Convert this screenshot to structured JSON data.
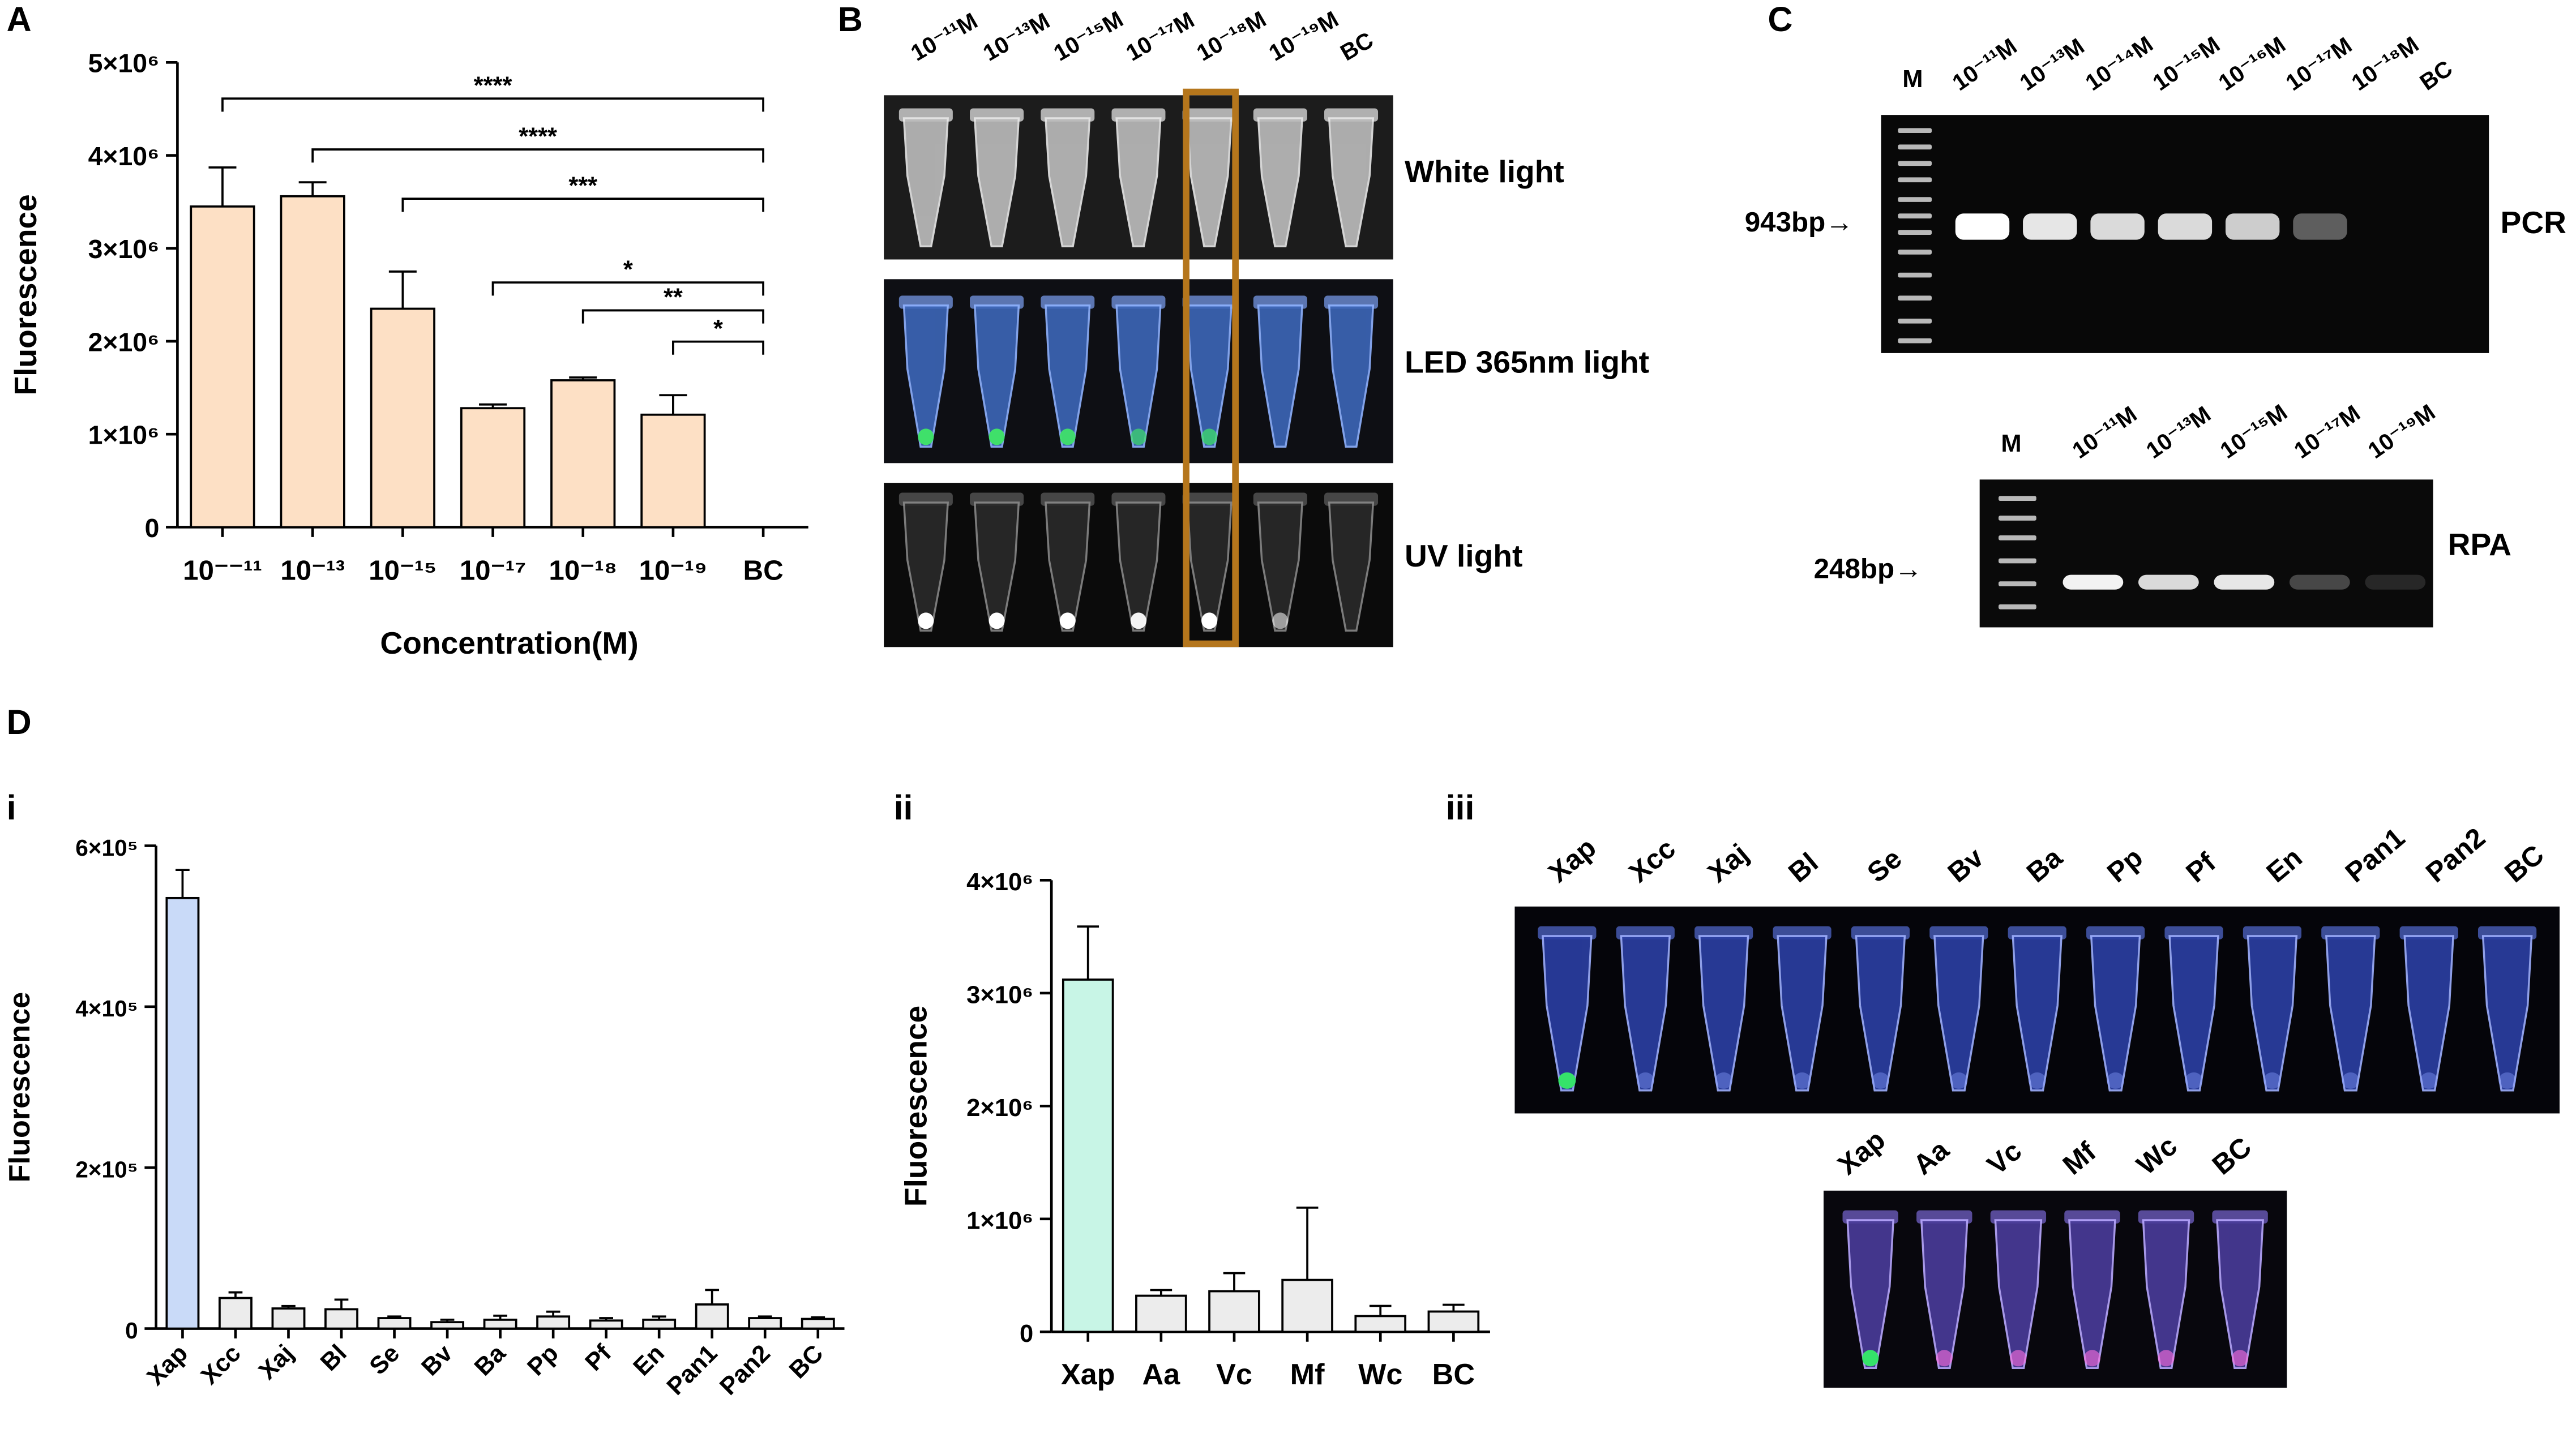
{
  "panels": {
    "A": "A",
    "B": "B",
    "C": "C",
    "D": "D",
    "i": "i",
    "ii": "ii",
    "iii": "iii"
  },
  "chart_data": [
    {
      "id": "A",
      "type": "bar",
      "xlabel": "Concentration(M)",
      "ylabel": "Fluorescence",
      "ylim": [
        0,
        5000000
      ],
      "yticks": [
        "0",
        "1×10⁶",
        "2×10⁶",
        "3×10⁶",
        "4×10⁶",
        "5×10⁶"
      ],
      "categories": [
        "10⁻⁻¹¹",
        "10⁻¹³",
        "10⁻¹⁵",
        "10⁻¹⁷",
        "10⁻¹⁸",
        "10⁻¹⁹",
        "BC"
      ],
      "values": [
        3450000,
        3560000,
        2350000,
        1280000,
        1580000,
        1210000,
        0
      ],
      "errors": [
        420000,
        150000,
        400000,
        40000,
        30000,
        210000,
        0
      ],
      "bar_color": "#fde0c5",
      "significance": [
        {
          "from": 0,
          "to": 6,
          "label": "****"
        },
        {
          "from": 1,
          "to": 6,
          "label": "****"
        },
        {
          "from": 2,
          "to": 6,
          "label": "***"
        },
        {
          "from": 3,
          "to": 6,
          "label": "*"
        },
        {
          "from": 4,
          "to": 6,
          "label": "**"
        },
        {
          "from": 5,
          "to": 6,
          "label": "*"
        }
      ],
      "grid": false
    },
    {
      "id": "D-i",
      "type": "bar",
      "xlabel": "",
      "ylabel": "Fluorescence",
      "ylim": [
        0,
        600000
      ],
      "yticks": [
        "0",
        "2×10⁵",
        "4×10⁵",
        "6×10⁵"
      ],
      "categories": [
        "Xap",
        "Xcc",
        "Xaj",
        "Bl",
        "Se",
        "Bv",
        "Ba",
        "Pp",
        "Pf",
        "En",
        "Pan1",
        "Pan2",
        "BC"
      ],
      "values": [
        535000,
        38000,
        25000,
        24000,
        13000,
        8000,
        11000,
        15000,
        10000,
        11000,
        30000,
        13000,
        12000
      ],
      "errors": [
        35000,
        7000,
        3000,
        12000,
        2000,
        3000,
        5000,
        6000,
        3000,
        4000,
        18000,
        2000,
        2000
      ],
      "highlight_color": "#c9daf8",
      "bar_color": "#ececec",
      "grid": false
    },
    {
      "id": "D-ii",
      "type": "bar",
      "xlabel": "",
      "ylabel": "Fluorescence",
      "ylim": [
        0,
        4000000
      ],
      "yticks": [
        "0",
        "1×10⁶",
        "2×10⁶",
        "3×10⁶",
        "4×10⁶"
      ],
      "categories": [
        "Xap",
        "Aa",
        "Vc",
        "Mf",
        "Wc",
        "BC"
      ],
      "values": [
        3120000,
        320000,
        360000,
        460000,
        140000,
        180000
      ],
      "errors": [
        470000,
        50000,
        160000,
        640000,
        90000,
        60000
      ],
      "highlight_color": "#c8f5e6",
      "bar_color": "#ececec",
      "grid": false
    }
  ],
  "panelB": {
    "concentrations": [
      "10⁻¹¹M",
      "10⁻¹³M",
      "10⁻¹⁵M",
      "10⁻¹⁷M",
      "10⁻¹⁸M",
      "10⁻¹⁹M",
      "BC"
    ],
    "rows": [
      "White light",
      "LED 365nm light",
      "UV light"
    ],
    "highlight_color": "#b5761c"
  },
  "panelC": {
    "pcr": {
      "marker": "M",
      "lanes": [
        "10⁻¹¹M",
        "10⁻¹³M",
        "10⁻¹⁴M",
        "10⁻¹⁵M",
        "10⁻¹⁶M",
        "10⁻¹⁷M",
        "10⁻¹⁸M",
        "BC"
      ],
      "size_label": "943bp→",
      "method": "PCR"
    },
    "rpa": {
      "marker": "M",
      "lanes": [
        "10⁻¹¹M",
        "10⁻¹³M",
        "10⁻¹⁵M",
        "10⁻¹⁷M",
        "10⁻¹⁹M"
      ],
      "size_label": "248bp→",
      "method": "RPA"
    }
  },
  "panelDiii": {
    "top_labels": [
      "Xap",
      "Xcc",
      "Xaj",
      "Bl",
      "Se",
      "Bv",
      "Ba",
      "Pp",
      "Pf",
      "En",
      "Pan1",
      "Pan2",
      "BC"
    ],
    "bottom_labels": [
      "Xap",
      "Aa",
      "Vc",
      "Mf",
      "Wc",
      "BC"
    ]
  }
}
